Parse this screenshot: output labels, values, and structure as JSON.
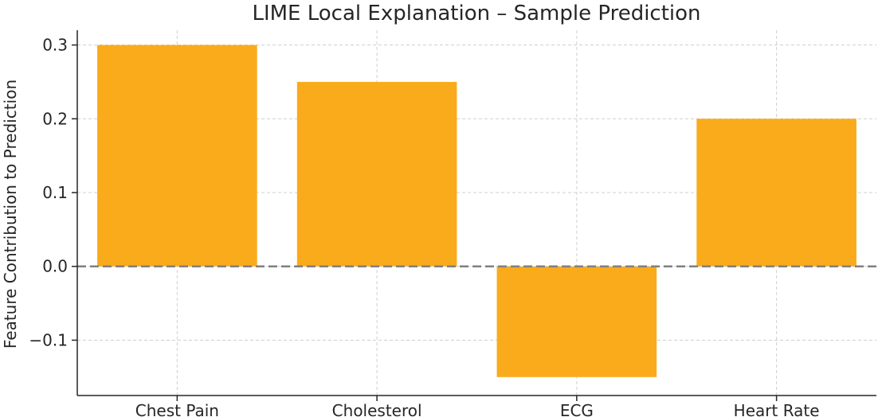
{
  "chart_data": {
    "type": "bar",
    "title": "LIME Local Explanation – Sample Prediction",
    "xlabel": "",
    "ylabel": "Feature Contribution to Prediction",
    "categories": [
      "Chest Pain",
      "Cholesterol",
      "ECG",
      "Heart Rate"
    ],
    "values": [
      0.3,
      0.25,
      -0.15,
      0.2
    ],
    "ylim": [
      -0.175,
      0.32
    ],
    "yticks": [
      -0.1,
      0.0,
      0.1,
      0.2,
      0.3
    ],
    "ytick_labels": [
      "−0.1",
      "0.0",
      "0.1",
      "0.2",
      "0.3"
    ],
    "bar_color": "#f9ab1b",
    "zero_line_color": "#808080",
    "grid": true
  }
}
